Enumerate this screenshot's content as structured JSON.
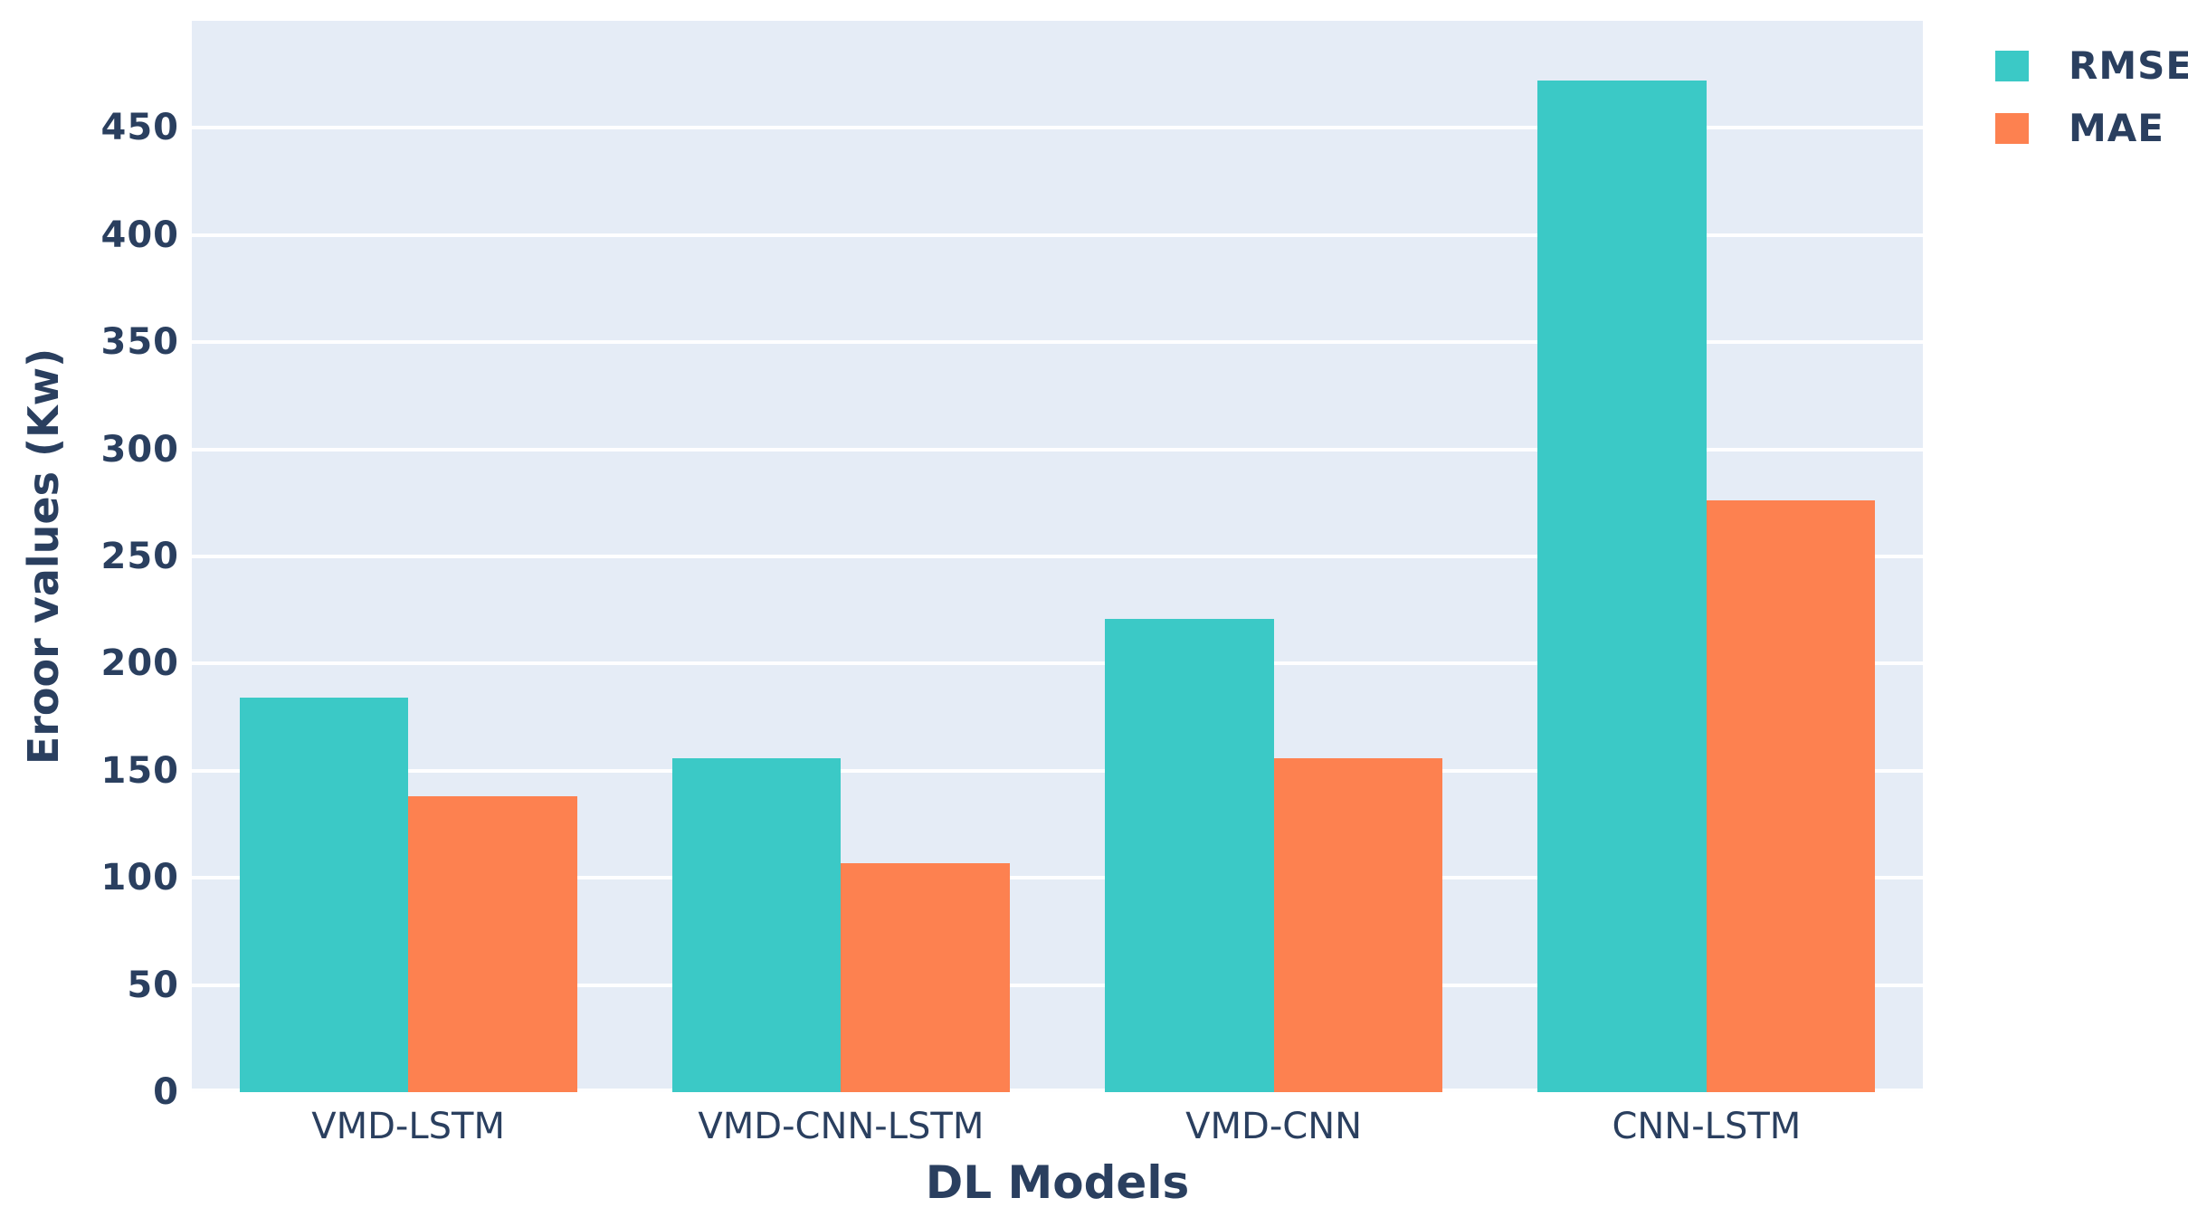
{
  "chart_data": {
    "type": "bar",
    "title": "",
    "xlabel": "DL Models",
    "ylabel": "Eroor values (Kw)",
    "categories": [
      "VMD-LSTM",
      "VMD-CNN-LSTM",
      "VMD-CNN",
      "CNN-LSTM"
    ],
    "series": [
      {
        "name": "RMSE",
        "color": "#3bc9c6",
        "values": [
          184,
          156,
          221,
          472
        ]
      },
      {
        "name": "MAE",
        "color": "#fd8150",
        "values": [
          138,
          107,
          156,
          276
        ]
      }
    ],
    "ylim": [
      0,
      500
    ],
    "yticks": [
      0,
      50,
      100,
      150,
      200,
      250,
      300,
      350,
      400,
      450
    ],
    "grid": true,
    "legend_position": "top-right",
    "colors": {
      "plot_background": "#e5ecf6",
      "gridline": "#ffffff",
      "text": "#2a3f5f",
      "page_background": "#ffffff"
    }
  }
}
